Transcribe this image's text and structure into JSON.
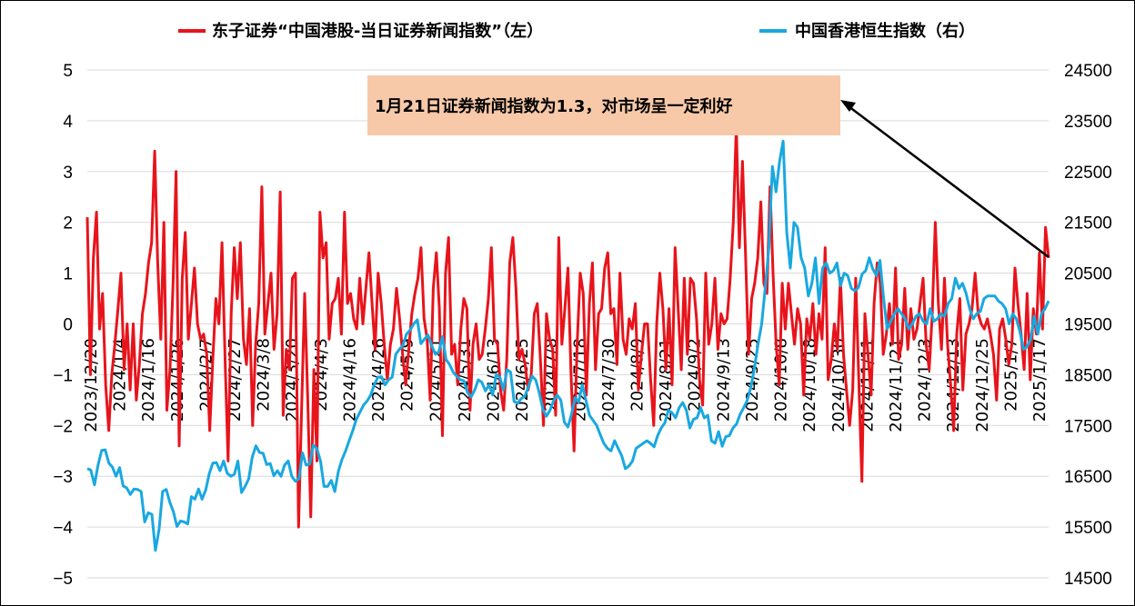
{
  "chart_data": {
    "type": "line",
    "legend": [
      {
        "name": "东子证券“中国港股-当日证券新闻指数”（左）",
        "color": "#e8141b"
      },
      {
        "name": "中国香港恒生指数（右）",
        "color": "#19a8e0"
      }
    ],
    "y_left": {
      "ticks": [
        "5",
        "4",
        "3",
        "2",
        "1",
        "0",
        "−1",
        "−2",
        "−3",
        "−4",
        "−5"
      ],
      "ylim": [
        -5,
        5
      ]
    },
    "y_right": {
      "ticks": [
        "24500",
        "23500",
        "22500",
        "21500",
        "20500",
        "19500",
        "18500",
        "17500",
        "16500",
        "15500",
        "14500"
      ],
      "ylim": [
        14500,
        24500
      ]
    },
    "x_ticks": [
      "2023/12/20",
      "2024/1/4",
      "2024/1/16",
      "2024/1/26",
      "2024/2/7",
      "2024/2/27",
      "2024/3/8",
      "2024/3/20",
      "2024/4/3",
      "2024/4/16",
      "2024/4/26",
      "2024/5/9",
      "2024/5/21",
      "2024/5/31",
      "2024/6/13",
      "2024/6/25",
      "2024/7/8",
      "2024/7/18",
      "2024/7/30",
      "2024/8/9",
      "2024/8/21",
      "2024/9/2",
      "2024/9/13",
      "2024/9/25",
      "2024/10/8",
      "2024/10/18",
      "2024/10/30",
      "2024/11/11",
      "2024/11/21",
      "2024/12/3",
      "2024/12/13",
      "2024/12/25",
      "2025/1/7",
      "2025/1/17"
    ],
    "annotation": {
      "text": "1月21日证券新闻指数为1.3，对市场呈一定利好",
      "box_color": "#f7c9a8",
      "arrow_color": "#000000"
    },
    "series": [
      {
        "name": "东子证券“中国港股-当日证券新闻指数”（左）",
        "axis": "left",
        "color": "#e8141b",
        "values": [
          2.1,
          -1.0,
          1.3,
          2.2,
          -0.1,
          0.6,
          -1.2,
          -2.1,
          -1.0,
          -0.4,
          0.3,
          1.0,
          -0.9,
          0.0,
          -1.3,
          0.0,
          -1.5,
          -0.8,
          0.2,
          0.6,
          1.2,
          1.6,
          3.4,
          1.2,
          -0.3,
          2.0,
          -1.7,
          -0.9,
          0.8,
          3.0,
          -2.4,
          0.9,
          1.8,
          -0.3,
          0.4,
          1.1,
          0.0,
          -0.3,
          -0.2,
          -0.6,
          -2.1,
          -0.7,
          0.5,
          0.0,
          1.6,
          -0.7,
          -2.7,
          0.2,
          1.5,
          0.5,
          1.6,
          -0.3,
          -0.8,
          0.3,
          -2.0,
          -0.4,
          0.4,
          2.7,
          -0.2,
          0.4,
          1.0,
          -0.5,
          0.2,
          2.6,
          -1.8,
          -0.5,
          -0.9,
          0.9,
          1.0,
          -4.0,
          -1.7,
          0.6,
          -1.5,
          -3.8,
          -0.9,
          -2.7,
          2.2,
          1.3,
          1.6,
          -0.3,
          0.4,
          0.5,
          0.9,
          -0.2,
          2.2,
          0.4,
          0.6,
          0.1,
          -0.1,
          0.9,
          0.0,
          0.7,
          1.4,
          0.4,
          -0.5,
          1.0,
          0.4,
          -0.4,
          -1.1,
          -0.4,
          -0.1,
          0.7,
          0.1,
          -0.6,
          -1.2,
          -0.5,
          0.2,
          0.6,
          0.9,
          1.5,
          0.1,
          -0.3,
          -1.5,
          0.7,
          1.4,
          0.3,
          -2.2,
          1.0,
          1.7,
          -0.6,
          -0.4,
          -1.2,
          -0.1,
          0.5,
          0.3,
          -1.7,
          -0.4,
          0.0,
          -0.7,
          -0.6,
          -0.1,
          0.5,
          1.5,
          -0.3,
          -0.4,
          -1.3,
          -1.7,
          -0.7,
          1.2,
          1.7,
          0.7,
          -0.7,
          -0.5,
          -0.8,
          -1.3,
          -1.0,
          0.2,
          0.4,
          -0.7,
          -2.0,
          0.2,
          -0.3,
          -0.5,
          -1.8,
          1.7,
          -0.4,
          0.3,
          1.1,
          -1.0,
          -2.5,
          -0.4,
          1.0,
          0.6,
          -1.4,
          0.4,
          1.2,
          -0.9,
          0.2,
          0.3,
          1.1,
          1.4,
          0.2,
          0.3,
          -0.8,
          1.0,
          -0.3,
          -0.6,
          0.1,
          -0.1,
          0.4,
          -1.3,
          -0.6,
          0.0,
          0.0,
          -1.1,
          -2.0,
          0.0,
          1.0,
          0.3,
          -0.9,
          0.3,
          -1.2,
          1.5,
          0.3,
          -0.9,
          0.9,
          -0.6,
          0.9,
          0.8,
          0.1,
          -1.1,
          -1.6,
          1.0,
          -0.4,
          0.0,
          0.9,
          -0.5,
          0.2,
          0.0,
          0.1,
          0.9,
          2.0,
          3.9,
          1.5,
          3.2,
          1.4,
          -0.6,
          0.5,
          0.8,
          1.3,
          2.4,
          0.8,
          0.6,
          2.7,
          1.0,
          -0.4,
          -1.2,
          0.8,
          -0.1,
          0.8,
          0.2,
          -0.4,
          0.3,
          0.0,
          -1.4,
          0.1,
          -0.3,
          0.4,
          -0.6,
          0.2,
          -0.3,
          1.5,
          -1.1,
          -0.7,
          0.0,
          -0.5,
          0.9,
          -0.6,
          -1.3,
          -2.0,
          -1.3,
          0.9,
          -1.1,
          -3.1,
          0.2,
          -0.6,
          -1.4,
          0.4,
          1.2,
          0.8,
          -0.6,
          -0.2,
          0.4,
          -0.4,
          1.1,
          -0.7,
          -0.4,
          0.7,
          -0.5,
          0.3,
          -0.3,
          -0.1,
          0.4,
          0.9,
          -0.4,
          -0.9,
          0.2,
          2.0,
          0.4,
          -0.5,
          0.9,
          -0.4,
          -1.2,
          -2.1,
          -0.2,
          0.5,
          -1.3,
          -0.2,
          0.0,
          0.3,
          1.0,
          0.2,
          0.0,
          -0.1,
          0.1,
          -0.2,
          -0.6,
          -1.5,
          -0.1,
          0.1,
          -0.3,
          -0.8,
          -0.4,
          1.1,
          0.4,
          -0.2,
          -0.9,
          0.6,
          -1.1,
          0.3,
          -0.2,
          1.4,
          -0.1,
          1.9,
          1.3
        ]
      },
      {
        "name": "中国香港恒生指数（右）",
        "axis": "right",
        "color": "#19a8e0",
        "values": [
          16650,
          16620,
          16330,
          16720,
          17010,
          17020,
          16760,
          16680,
          16500,
          16670,
          16310,
          16270,
          16140,
          16250,
          16240,
          16200,
          15600,
          15780,
          15750,
          15040,
          15450,
          16200,
          16240,
          15990,
          15800,
          15510,
          15620,
          15600,
          15560,
          16100,
          16050,
          16250,
          16050,
          16230,
          16550,
          16760,
          16770,
          16610,
          16800,
          16560,
          16500,
          16540,
          16800,
          16180,
          16300,
          16450,
          16880,
          17100,
          16970,
          16950,
          16730,
          16750,
          16510,
          16610,
          16500,
          16720,
          16800,
          16500,
          16400,
          16450,
          16960,
          16720,
          16740,
          17110,
          17050,
          16800,
          16300,
          16300,
          16420,
          16200,
          16600,
          16830,
          17000,
          17200,
          17400,
          17620,
          17760,
          17900,
          17980,
          18100,
          18300,
          18450,
          18460,
          18300,
          18400,
          18450,
          18900,
          19000,
          19080,
          19300,
          19380,
          19500,
          19580,
          19110,
          19200,
          19280,
          19080,
          18900,
          18950,
          19250,
          18800,
          18700,
          18550,
          18470,
          18400,
          18380,
          18150,
          18060,
          18200,
          18400,
          18350,
          18180,
          18300,
          18100,
          18500,
          18450,
          18200,
          18600,
          18550,
          17970,
          17940,
          18030,
          18080,
          18270,
          18470,
          18400,
          18150,
          17820,
          17680,
          17800,
          17990,
          18100,
          18000,
          17560,
          17470,
          17720,
          18050,
          17960,
          18300,
          18000,
          17700,
          17600,
          17500,
          17320,
          17150,
          17050,
          17000,
          17200,
          17050,
          16900,
          16650,
          16700,
          16800,
          17050,
          17100,
          17150,
          17200,
          17150,
          17080,
          17300,
          17450,
          17550,
          17800,
          17750,
          17650,
          17850,
          17950,
          17800,
          17450,
          17620,
          17650,
          17850,
          17650,
          17700,
          17200,
          17150,
          17380,
          17090,
          17280,
          17300,
          17450,
          17530,
          17720,
          17850,
          18000,
          18250,
          18640,
          19100,
          19500,
          20200,
          21000,
          22600,
          22100,
          22700,
          23100,
          21300,
          20600,
          21500,
          21400,
          20800,
          20600,
          20050,
          20300,
          20800,
          19900,
          20600,
          20700,
          20500,
          20550,
          20700,
          20250,
          20500,
          20450,
          20200,
          20150,
          20220,
          20480,
          20550,
          20800,
          20580,
          20450,
          20750,
          20000,
          19400,
          19550,
          19700,
          19800,
          19700,
          19600,
          19400,
          19500,
          19650,
          19700,
          19550,
          19500,
          19800,
          19550,
          19600,
          19700,
          19650,
          19900,
          20000,
          20400,
          20200,
          20300,
          20100,
          19800,
          19600,
          19700,
          19750,
          20000,
          20050,
          20050,
          20050,
          19950,
          19900,
          19800,
          19500,
          19700,
          19600,
          19350,
          19000,
          19050,
          19200,
          19650,
          19300,
          19700,
          19800,
          19950
        ]
      }
    ]
  }
}
